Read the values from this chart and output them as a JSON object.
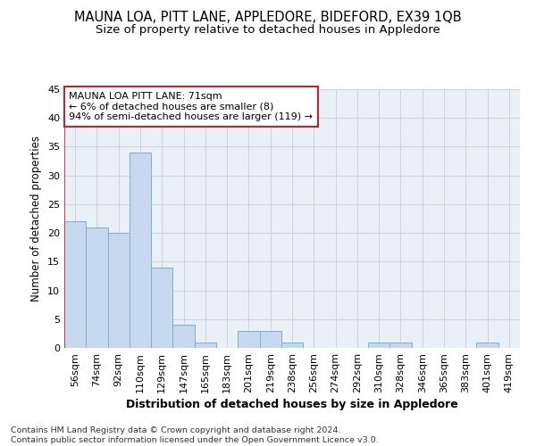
{
  "title": "MAUNA LOA, PITT LANE, APPLEDORE, BIDEFORD, EX39 1QB",
  "subtitle": "Size of property relative to detached houses in Appledore",
  "xlabel": "Distribution of detached houses by size in Appledore",
  "ylabel": "Number of detached properties",
  "categories": [
    "56sqm",
    "74sqm",
    "92sqm",
    "110sqm",
    "129sqm",
    "147sqm",
    "165sqm",
    "183sqm",
    "201sqm",
    "219sqm",
    "238sqm",
    "256sqm",
    "274sqm",
    "292sqm",
    "310sqm",
    "328sqm",
    "346sqm",
    "365sqm",
    "383sqm",
    "401sqm",
    "419sqm"
  ],
  "values": [
    22,
    21,
    20,
    34,
    14,
    4,
    1,
    0,
    3,
    3,
    1,
    0,
    0,
    0,
    1,
    1,
    0,
    0,
    0,
    1,
    0
  ],
  "bar_color": "#c5d8ed",
  "bar_edge_color": "#7bafd4",
  "grid_color": "#c8d4e0",
  "background_color": "#eaf0f8",
  "annotation_text": "MAUNA LOA PITT LANE: 71sqm\n← 6% of detached houses are smaller (8)\n94% of semi-detached houses are larger (119) →",
  "vline_color": "#cc2222",
  "ylim": [
    0,
    45
  ],
  "yticks": [
    0,
    5,
    10,
    15,
    20,
    25,
    30,
    35,
    40,
    45
  ],
  "footer": "Contains HM Land Registry data © Crown copyright and database right 2024.\nContains public sector information licensed under the Open Government Licence v3.0.",
  "title_fontsize": 10.5,
  "subtitle_fontsize": 9.5,
  "xlabel_fontsize": 9,
  "ylabel_fontsize": 8.5,
  "tick_fontsize": 8,
  "annotation_fontsize": 8,
  "footer_fontsize": 6.8
}
